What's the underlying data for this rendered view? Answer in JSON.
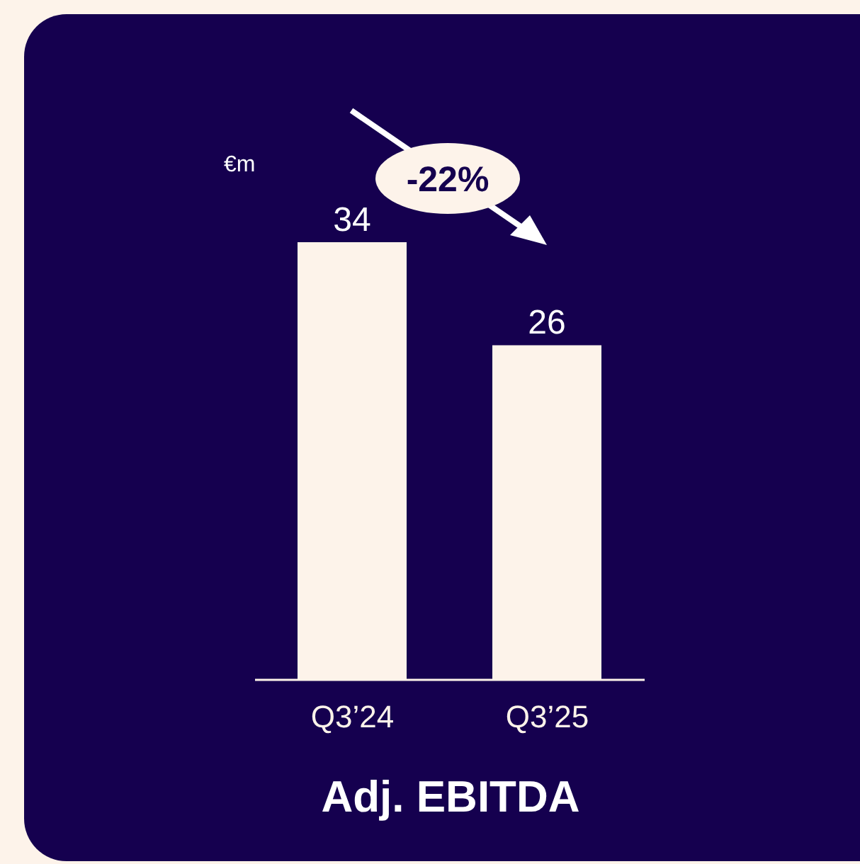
{
  "chart_data": {
    "type": "bar",
    "title": "Adj. EBITDA",
    "ylabel": "€m",
    "categories": [
      "Q3’24",
      "Q3’25"
    ],
    "values": [
      34,
      26
    ],
    "color": "#fdf3ea",
    "data_labels": true,
    "annotations": [
      "-22%"
    ]
  }
}
